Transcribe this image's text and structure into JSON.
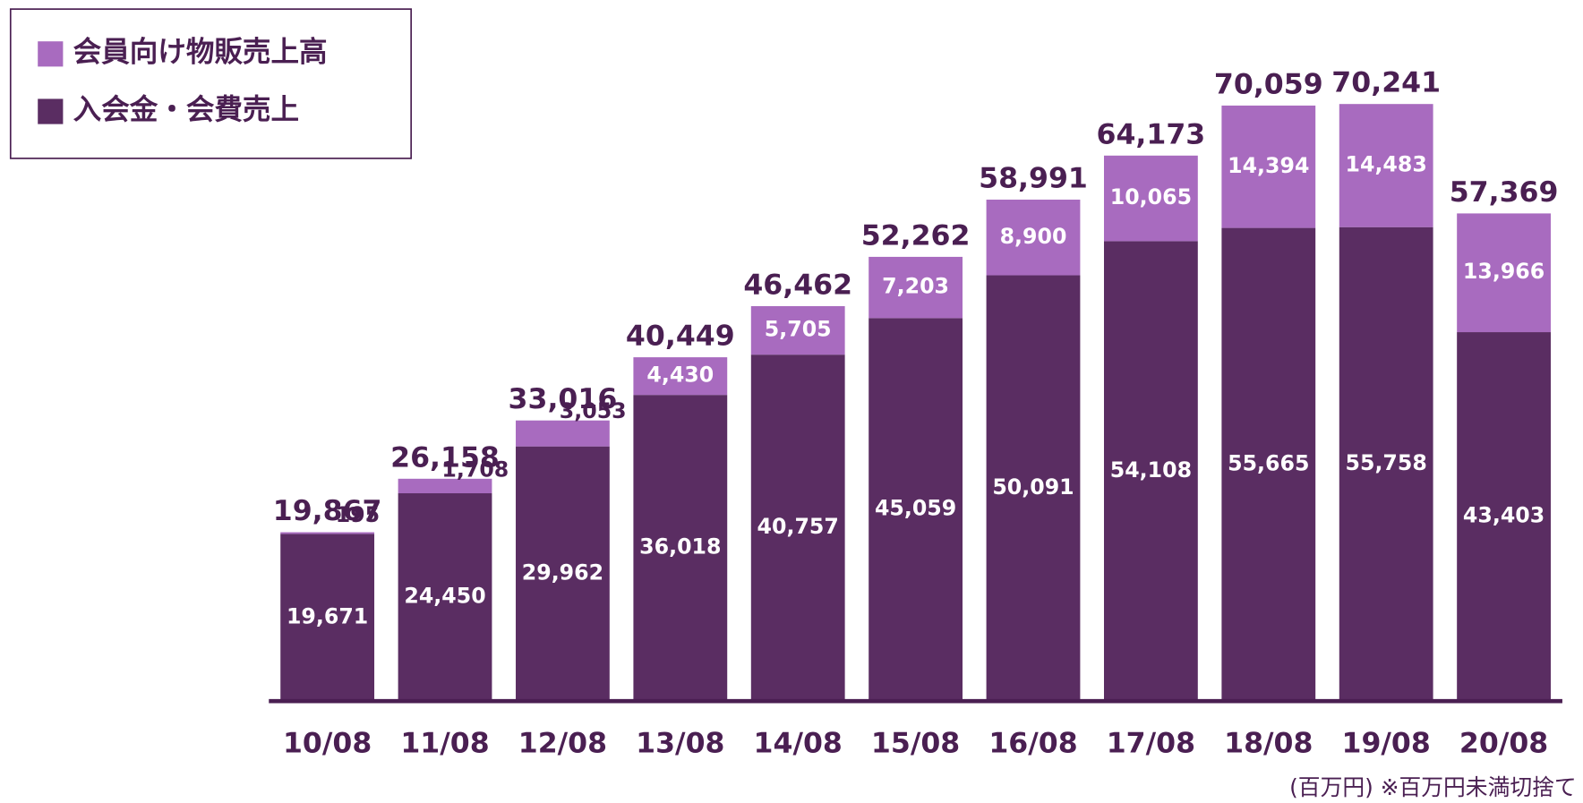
{
  "chart_data": {
    "type": "stacked-bar",
    "categories": [
      "10/08",
      "11/08",
      "12/08",
      "13/08",
      "14/08",
      "15/08",
      "16/08",
      "17/08",
      "18/08",
      "19/08",
      "20/08"
    ],
    "series": [
      {
        "name": "入会金・会費売上",
        "color": "#5a2d62",
        "values": [
          19671,
          24450,
          29962,
          36018,
          40757,
          45059,
          50091,
          54108,
          55665,
          55758,
          43403
        ],
        "value_labels": [
          "19,671",
          "24,450",
          "29,962",
          "36,018",
          "40,757",
          "45,059",
          "50,091",
          "54,108",
          "55,665",
          "55,758",
          "43,403"
        ]
      },
      {
        "name": "会員向け物販売上高",
        "color": "#a86bbf",
        "values": [
          195,
          1708,
          3053,
          4430,
          5705,
          7203,
          8900,
          10065,
          14394,
          14483,
          13966
        ],
        "value_labels": [
          "195",
          "1,708",
          "3,053",
          "4,430",
          "5,705",
          "7,203",
          "8,900",
          "10,065",
          "14,394",
          "14,483",
          "13,966"
        ]
      }
    ],
    "totals": [
      19867,
      26158,
      33016,
      40449,
      46462,
      52262,
      58991,
      64173,
      70059,
      70241,
      57369
    ],
    "total_labels": [
      "19,867",
      "26,158",
      "33,016",
      "40,449",
      "46,462",
      "52,262",
      "58,991",
      "64,173",
      "70,059",
      "70,241",
      "57,369"
    ],
    "ylim": [
      0,
      75000
    ],
    "note": "(百万円) ※百万円未満切捨て"
  }
}
